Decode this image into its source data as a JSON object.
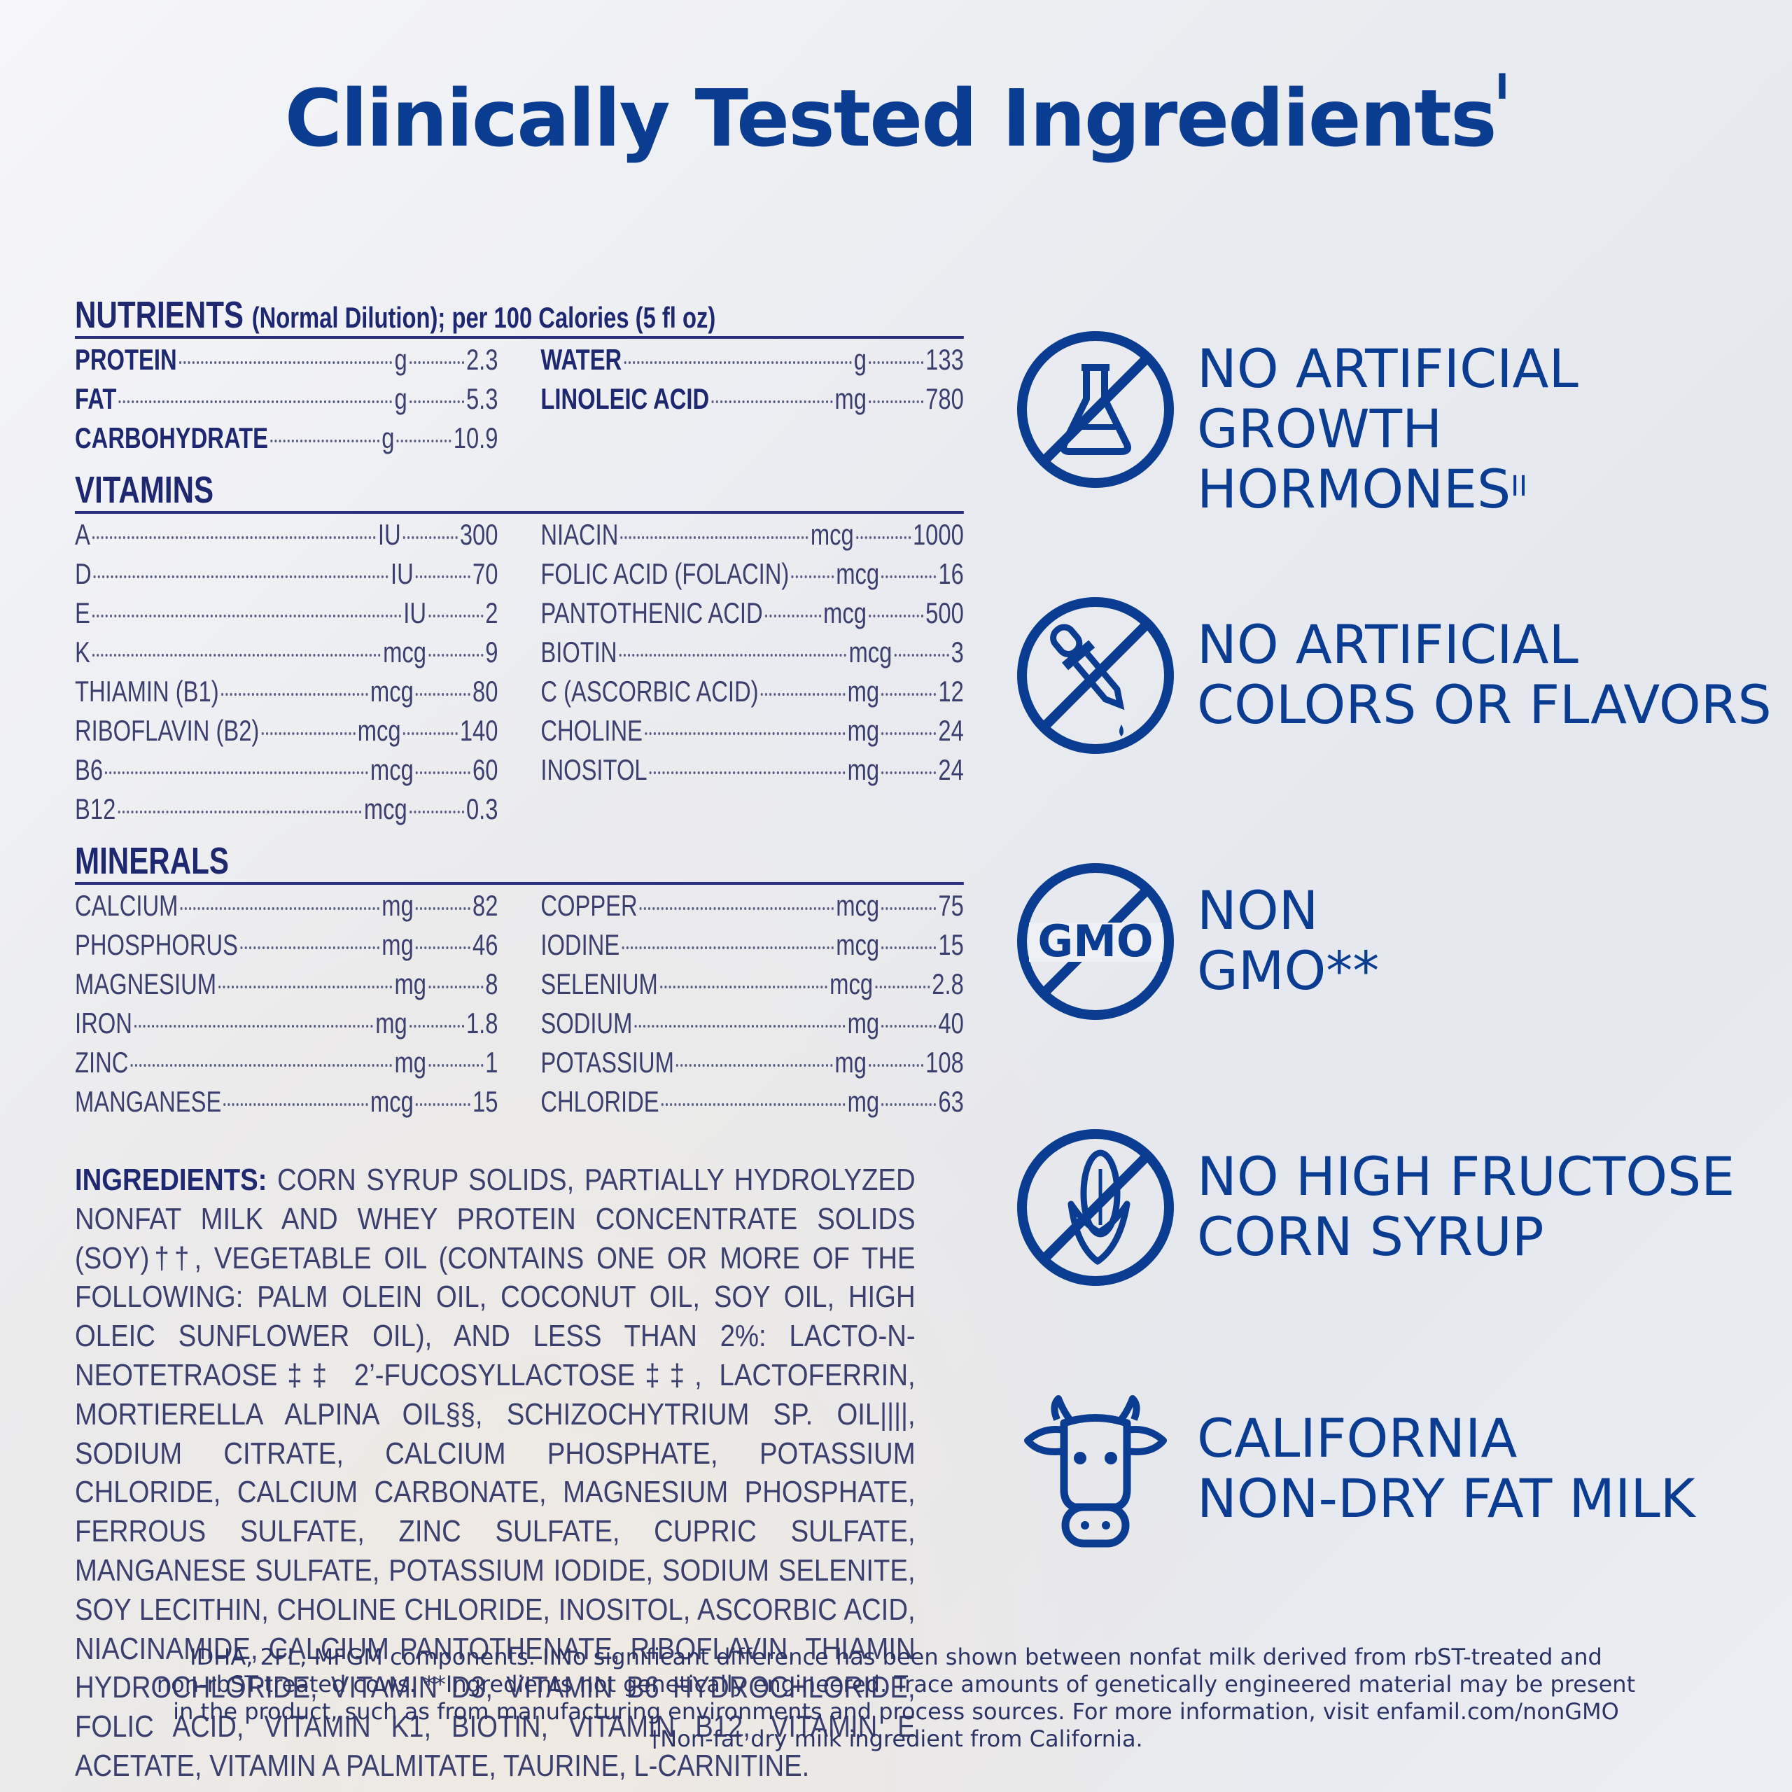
{
  "title": "Clinically Tested Ingredients",
  "title_mark": "I",
  "nutrients": {
    "heading": "NUTRIENTS",
    "subheading": "(Normal Dilution); per 100 Calories (5 fl oz)",
    "left": [
      {
        "name": "PROTEIN",
        "unit": "g",
        "value": "2.3"
      },
      {
        "name": "FAT",
        "unit": "g",
        "value": "5.3"
      },
      {
        "name": "CARBOHYDRATE",
        "unit": "g",
        "value": "10.9"
      }
    ],
    "right": [
      {
        "name": "WATER",
        "unit": "g",
        "value": "133"
      },
      {
        "name": "LINOLEIC ACID",
        "unit": "mg",
        "value": "780"
      }
    ]
  },
  "vitamins": {
    "heading": "VITAMINS",
    "left": [
      {
        "name": "A",
        "unit": "IU",
        "value": "300"
      },
      {
        "name": "D",
        "unit": "IU",
        "value": "70"
      },
      {
        "name": "E",
        "unit": "IU",
        "value": "2"
      },
      {
        "name": "K",
        "unit": "mcg",
        "value": "9"
      },
      {
        "name": "THIAMIN (B1)",
        "unit": "mcg",
        "value": "80"
      },
      {
        "name": "RIBOFLAVIN (B2)",
        "unit": "mcg",
        "value": "140"
      },
      {
        "name": "B6",
        "unit": "mcg",
        "value": "60"
      },
      {
        "name": "B12",
        "unit": "mcg",
        "value": "0.3"
      }
    ],
    "right": [
      {
        "name": "NIACIN",
        "unit": "mcg",
        "value": "1000"
      },
      {
        "name": "FOLIC ACID (FOLACIN)",
        "unit": "mcg",
        "value": "16"
      },
      {
        "name": "PANTOTHENIC ACID",
        "unit": "mcg",
        "value": "500"
      },
      {
        "name": "BIOTIN",
        "unit": "mcg",
        "value": "3"
      },
      {
        "name": "C (ASCORBIC ACID)",
        "unit": "mg",
        "value": "12"
      },
      {
        "name": "CHOLINE",
        "unit": "mg",
        "value": "24"
      },
      {
        "name": "INOSITOL",
        "unit": "mg",
        "value": "24"
      }
    ]
  },
  "minerals": {
    "heading": "MINERALS",
    "left": [
      {
        "name": "CALCIUM",
        "unit": "mg",
        "value": "82"
      },
      {
        "name": "PHOSPHORUS",
        "unit": "mg",
        "value": "46"
      },
      {
        "name": "MAGNESIUM",
        "unit": "mg",
        "value": "8"
      },
      {
        "name": "IRON",
        "unit": "mg",
        "value": "1.8"
      },
      {
        "name": "ZINC",
        "unit": "mg",
        "value": "1"
      },
      {
        "name": "MANGANESE",
        "unit": "mcg",
        "value": "15"
      }
    ],
    "right": [
      {
        "name": "COPPER",
        "unit": "mcg",
        "value": "75"
      },
      {
        "name": "IODINE",
        "unit": "mcg",
        "value": "15"
      },
      {
        "name": "SELENIUM",
        "unit": "mcg",
        "value": "2.8"
      },
      {
        "name": "SODIUM",
        "unit": "mg",
        "value": "40"
      },
      {
        "name": "POTASSIUM",
        "unit": "mg",
        "value": "108"
      },
      {
        "name": "CHLORIDE",
        "unit": "mg",
        "value": "63"
      }
    ]
  },
  "ingredients": {
    "label": "INGREDIENTS:",
    "text": "CORN SYRUP SOLIDS, PARTIALLY HYDROLYZED NONFAT MILK AND WHEY PROTEIN CONCENTRATE SOLIDS (SOY)††, VEGETABLE OIL (CONTAINS ONE OR MORE OF THE FOLLOWING: PALM OLEIN OIL, COCONUT OIL, SOY OIL, HIGH OLEIC SUNFLOWER OIL), AND LESS THAN 2%: LACTO-N-NEOTETRAOSE‡‡ 2’-FUCOSYLLACTOSE‡‡, LACTOFERRIN, MORTIERELLA ALPINA OIL§§, SCHIZOCHYTRIUM SP. OIL||||, SODIUM CITRATE, CALCIUM PHOSPHATE, POTASSIUM CHLORIDE, CALCIUM CARBONATE, MAGNESIUM PHOSPHATE, FERROUS SULFATE, ZINC SULFATE, CUPRIC SULFATE, MANGANESE SULFATE, POTASSIUM IODIDE, SODIUM SELENITE, SOY LECITHIN, CHOLINE CHLORIDE, INOSITOL, ASCORBIC ACID, NIACINAMIDE, CALCIUM PANTOTHENATE, RIBOFLAVIN, THIAMIN HYDROCHLORIDE, VITAMIN D3, VITAMIN B6 HYDROCHLORIDE, FOLIC ACID, VITAMIN K1, BIOTIN, VITAMIN B12, VITAMIN E ACETATE, VITAMIN A PALMITATE, TAURINE, L-CARNITINE."
  },
  "claims": [
    {
      "icon": "no-flask-icon",
      "lines": [
        "NO ARTIFICIAL",
        "GROWTH",
        "HORMONES"
      ],
      "mark": "II"
    },
    {
      "icon": "no-dropper-icon",
      "lines": [
        "NO ARTIFICIAL",
        "COLORS OR FLAVORS"
      ],
      "mark": ""
    },
    {
      "icon": "gmo-icon",
      "icon_text": "GMO",
      "lines": [
        "NON",
        "GMO**"
      ],
      "mark": ""
    },
    {
      "icon": "no-corn-icon",
      "lines": [
        "NO HIGH FRUCTOSE",
        "CORN SYRUP"
      ],
      "mark": ""
    },
    {
      "icon": "cow-icon",
      "lines": [
        "CALIFORNIA",
        "NON-DRY FAT MILK"
      ],
      "mark": ""
    }
  ],
  "footnotes": [
    "IDHA, 2FL, MFGM components. IINo significant difference has been shown between nonfat milk derived from rbST-treated and",
    "non-rbST-treated cows. **Ingredients not genetically engineered. Trace amounts of genetically engineered material may be present",
    "in the product, such as from manufacturing environments and process sources. For more information, visit enfamil.com/nonGMO",
    "†Non-fat dry milk ingredient from California."
  ],
  "colors": {
    "brand_blue": "#0a3d91",
    "table_navy": "#1e2870"
  }
}
